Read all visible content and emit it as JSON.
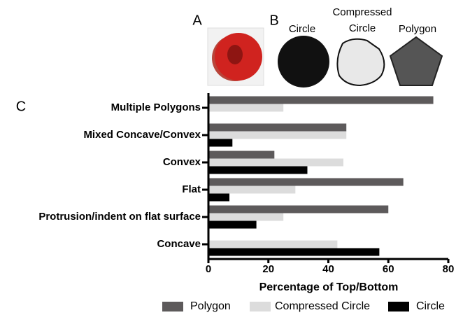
{
  "panels": {
    "a": "A",
    "b": "B",
    "c": "C",
    "circle": "Circle",
    "compressed_circle": [
      "Compressed",
      "Circle"
    ],
    "polygon": "Polygon"
  },
  "chart_data": {
    "type": "bar",
    "orientation": "horizontal",
    "categories": [
      "Multiple Polygons",
      "Mixed Concave/Convex",
      "Convex",
      "Flat",
      "Protrusion/indent on flat surface",
      "Concave"
    ],
    "series": [
      {
        "name": "Polygon",
        "color": "#5d5a5b",
        "values": [
          75,
          46,
          22,
          65,
          60,
          0
        ]
      },
      {
        "name": "Compressed Circle",
        "color": "#dcdcdc",
        "values": [
          25,
          46,
          45,
          29,
          25,
          43
        ]
      },
      {
        "name": "Circle",
        "color": "#000000",
        "values": [
          0,
          8,
          33,
          7,
          16,
          57
        ]
      }
    ],
    "x_label": "Percentage of Top/Bottom",
    "xlim": [
      0,
      80
    ],
    "xticks": [
      0,
      20,
      40,
      60,
      80
    ],
    "grid": false,
    "legend": "bottom"
  }
}
